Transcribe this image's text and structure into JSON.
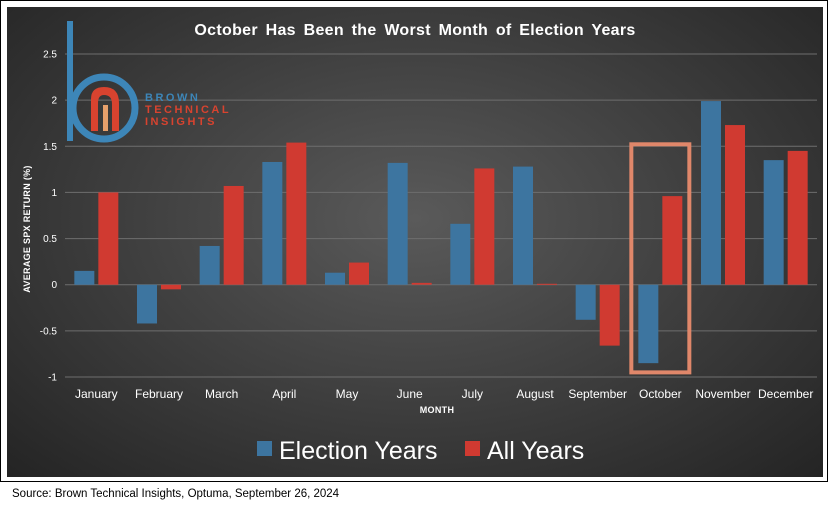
{
  "chart_data": {
    "type": "bar",
    "title": "October Has Been the Worst Month of Election Years",
    "xlabel": "MONTH",
    "ylabel": "AVERAGE SPX RETURN (%)",
    "ylim": [
      -1,
      2.5
    ],
    "yticks": [
      "2.5",
      "2",
      "1.5",
      "1",
      "0.5",
      "0",
      "-0.5",
      "-1"
    ],
    "ytick_values": [
      2.5,
      2,
      1.5,
      1,
      0.5,
      0,
      -0.5,
      -1
    ],
    "categories": [
      "January",
      "February",
      "March",
      "April",
      "May",
      "June",
      "July",
      "August",
      "September",
      "October",
      "November",
      "December"
    ],
    "series": [
      {
        "name": "Election Years",
        "color": "#3d75a0",
        "values": [
          0.15,
          -0.42,
          0.42,
          1.33,
          0.13,
          1.32,
          0.66,
          1.28,
          -0.38,
          -0.85,
          1.99,
          1.35
        ]
      },
      {
        "name": "All Years",
        "color": "#d03a31",
        "values": [
          1.0,
          -0.05,
          1.07,
          1.54,
          0.24,
          0.02,
          1.26,
          0.01,
          -0.66,
          0.96,
          1.73,
          1.45
        ]
      }
    ],
    "highlight": {
      "category": "October",
      "color": "#e0876a"
    },
    "grid": true,
    "legend": "bottom-center"
  },
  "logo": {
    "line1": "BROWN",
    "line2": "TECHNICAL",
    "line3": "INSIGHTS",
    "color_blue": "#3d86b8",
    "color_red": "#d8432f"
  },
  "source": "Source: Brown Technical Insights, Optuma, September 26, 2024"
}
